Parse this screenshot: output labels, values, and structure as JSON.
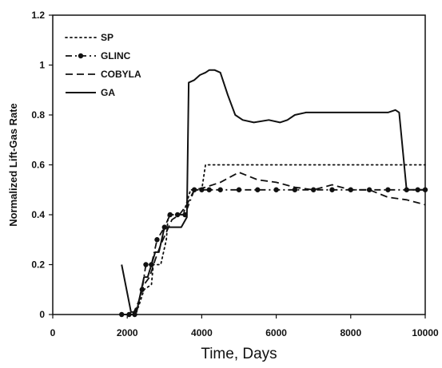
{
  "chart_data": {
    "type": "line",
    "title": "",
    "xlabel": "Time, Days",
    "ylabel": "Normalized Lift-Gas Rate",
    "xlim": [
      0,
      10000
    ],
    "ylim": [
      0,
      1.2
    ],
    "xticks": [
      "0",
      "2000",
      "4000",
      "6000",
      "8000",
      "10000"
    ],
    "yticks": [
      "0",
      "0.2",
      "0.4",
      "0.6",
      "0.8",
      "1",
      "1.2"
    ],
    "grid": false,
    "legend_position": "top-left",
    "series": [
      {
        "name": "SP",
        "style": "dotted",
        "marker": "none",
        "x": [
          1850,
          2000,
          2150,
          2300,
          2450,
          2650,
          2700,
          2900,
          3050,
          3100,
          3400,
          3500,
          3700,
          4000,
          4100,
          4200,
          5000,
          6000,
          7000,
          8000,
          9000,
          9500,
          10000
        ],
        "y": [
          0,
          0,
          0,
          0.03,
          0.1,
          0.12,
          0.2,
          0.2,
          0.3,
          0.4,
          0.4,
          0.4,
          0.5,
          0.5,
          0.6,
          0.6,
          0.6,
          0.6,
          0.6,
          0.6,
          0.6,
          0.6,
          0.6
        ]
      },
      {
        "name": "GLINC",
        "style": "dashdot",
        "marker": "circle",
        "x": [
          1850,
          2050,
          2200,
          2400,
          2500,
          2650,
          2800,
          3000,
          3150,
          3350,
          3550,
          3800,
          4000,
          4200,
          4500,
          5000,
          5500,
          6000,
          6500,
          7000,
          7500,
          8000,
          8500,
          9000,
          9500,
          9800,
          10000
        ],
        "y": [
          0,
          0,
          0,
          0.1,
          0.2,
          0.2,
          0.3,
          0.35,
          0.4,
          0.4,
          0.4,
          0.5,
          0.5,
          0.5,
          0.5,
          0.5,
          0.5,
          0.5,
          0.5,
          0.5,
          0.5,
          0.5,
          0.5,
          0.5,
          0.5,
          0.5,
          0.5
        ]
      },
      {
        "name": "COBYLA",
        "style": "dashed",
        "marker": "none",
        "x": [
          1850,
          2000,
          2150,
          2300,
          2450,
          2600,
          2750,
          2900,
          3050,
          3200,
          3400,
          3600,
          3800,
          4100,
          4500,
          5000,
          5500,
          6000,
          6500,
          7000,
          7500,
          8000,
          8500,
          9000,
          9500,
          10000
        ],
        "y": [
          0,
          0,
          0,
          0.05,
          0.12,
          0.15,
          0.22,
          0.28,
          0.33,
          0.38,
          0.4,
          0.44,
          0.5,
          0.51,
          0.53,
          0.57,
          0.54,
          0.53,
          0.51,
          0.5,
          0.52,
          0.5,
          0.5,
          0.47,
          0.46,
          0.44
        ]
      },
      {
        "name": "GA",
        "style": "solid",
        "marker": "none",
        "x": [
          1850,
          2100,
          2250,
          2450,
          2550,
          2750,
          2850,
          3000,
          3100,
          3200,
          3350,
          3450,
          3600,
          3650,
          3800,
          3950,
          4100,
          4200,
          4350,
          4500,
          4700,
          4900,
          5100,
          5400,
          5800,
          6100,
          6300,
          6500,
          6800,
          7000,
          7500,
          8000,
          8500,
          9000,
          9200,
          9300,
          9500,
          9700,
          10000
        ],
        "y": [
          0.2,
          0.01,
          0.01,
          0.15,
          0.15,
          0.25,
          0.25,
          0.35,
          0.35,
          0.35,
          0.35,
          0.35,
          0.39,
          0.93,
          0.94,
          0.96,
          0.97,
          0.98,
          0.98,
          0.97,
          0.88,
          0.8,
          0.78,
          0.77,
          0.78,
          0.77,
          0.78,
          0.8,
          0.81,
          0.81,
          0.81,
          0.81,
          0.81,
          0.81,
          0.82,
          0.81,
          0.5,
          0.5,
          0.5
        ]
      }
    ]
  }
}
